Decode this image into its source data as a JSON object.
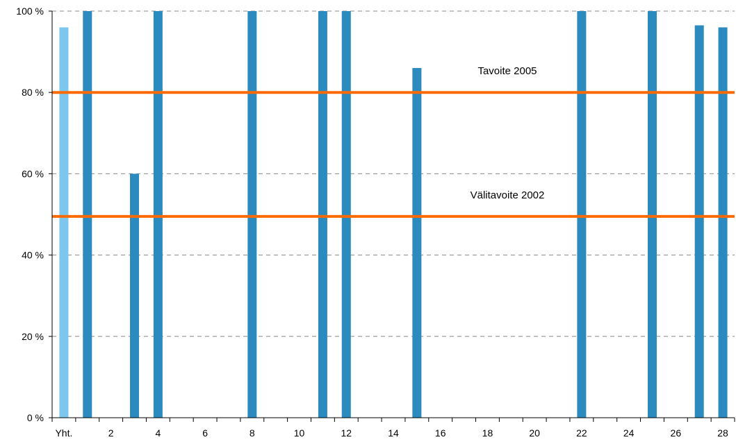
{
  "chart_data": {
    "type": "bar",
    "title": "",
    "xlabel": "",
    "ylabel": "",
    "ylim": [
      0,
      100
    ],
    "y_ticks": [
      "0 %",
      "20 %",
      "40 %",
      "60 %",
      "80 %",
      "100 %"
    ],
    "grid": "horizontal dashed",
    "categories": [
      "Yht.",
      "1",
      "2",
      "3",
      "4",
      "5",
      "6",
      "7",
      "8",
      "9",
      "10",
      "11",
      "12",
      "13",
      "14",
      "15",
      "16",
      "17",
      "18",
      "19",
      "20",
      "21",
      "22",
      "23",
      "24",
      "25",
      "26",
      "27",
      "28"
    ],
    "x_tick_labels": [
      "Yht.",
      "",
      "2",
      "",
      "4",
      "",
      "6",
      "",
      "8",
      "",
      "10",
      "",
      "12",
      "",
      "14",
      "",
      "16",
      "",
      "18",
      "",
      "20",
      "",
      "22",
      "",
      "24",
      "",
      "26",
      "",
      "28"
    ],
    "values": [
      96,
      100,
      0,
      60,
      100,
      0,
      0,
      0,
      100,
      0,
      0,
      100,
      100,
      0,
      0,
      86,
      0,
      0,
      0,
      0,
      0,
      0,
      100,
      0,
      0,
      100,
      0,
      96.5,
      96
    ],
    "bar_colors": {
      "total": "#7dc6ee",
      "default": "#2b8bbe"
    },
    "reference_lines": [
      {
        "label": "Tavoite 2005",
        "value": 80,
        "color": "#ff6a00"
      },
      {
        "label": "Välitavoite 2002",
        "value": 49.5,
        "color": "#ff6a00"
      }
    ]
  }
}
